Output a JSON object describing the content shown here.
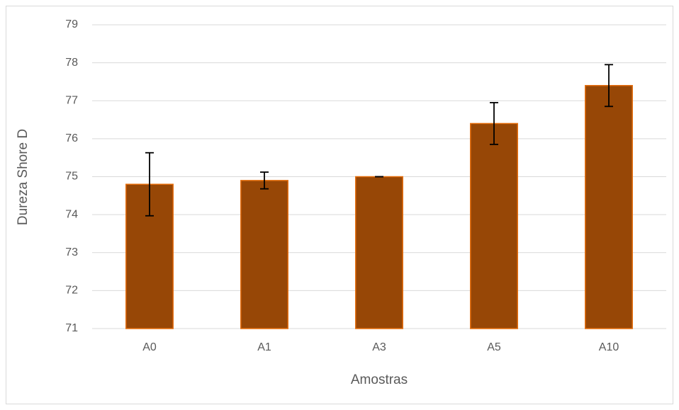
{
  "chart_data": {
    "type": "bar",
    "x_label": "Amostras",
    "y_label": "Dureza Shore D",
    "categories": [
      "A0",
      "A1",
      "A3",
      "A5",
      "A10"
    ],
    "values": [
      74.8,
      74.9,
      75.0,
      76.4,
      77.4
    ],
    "errors": [
      0.83,
      0.22,
      0,
      0.55,
      0.55
    ],
    "color": "#974706",
    "edge_color": "#e46c0a",
    "error_color": "#000000",
    "ylim": [
      71,
      79
    ],
    "yticks": [
      71,
      72,
      73,
      74,
      75,
      76,
      77,
      78,
      79
    ],
    "grid": true
  }
}
